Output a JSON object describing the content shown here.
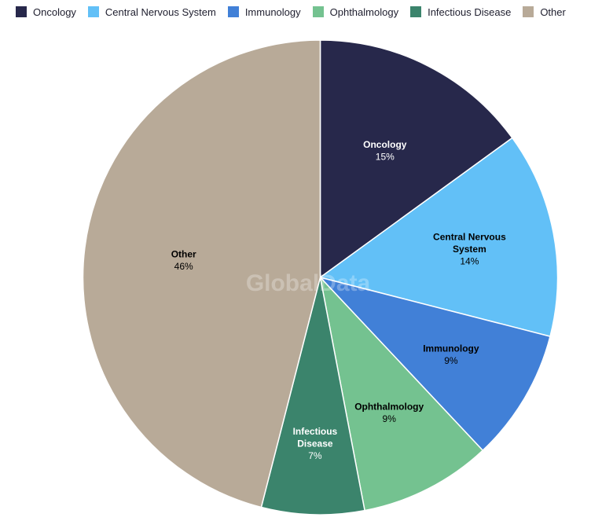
{
  "watermark": "GlobalData",
  "chart_data": {
    "type": "pie",
    "legend_position": "top",
    "slices": [
      {
        "name": "Oncology",
        "label_lines": [
          "Oncology"
        ],
        "value": 15,
        "value_label": "15%",
        "color": "#27284b",
        "label_color": "#ffffff"
      },
      {
        "name": "Central Nervous System",
        "label_lines": [
          "Central Nervous",
          "System"
        ],
        "value": 14,
        "value_label": "14%",
        "color": "#62c0f7",
        "label_color": "#000000"
      },
      {
        "name": "Immunology",
        "label_lines": [
          "Immunology"
        ],
        "value": 9,
        "value_label": "9%",
        "color": "#4180d7",
        "label_color": "#000000"
      },
      {
        "name": "Ophthalmology",
        "label_lines": [
          "Ophthalmology"
        ],
        "value": 9,
        "value_label": "9%",
        "color": "#74c290",
        "label_color": "#000000"
      },
      {
        "name": "Infectious Disease",
        "label_lines": [
          "Infectious",
          "Disease"
        ],
        "value": 7,
        "value_label": "7%",
        "color": "#3b846c",
        "label_color": "#ffffff"
      },
      {
        "name": "Other",
        "label_lines": [
          "Other"
        ],
        "value": 46,
        "value_label": "46%",
        "color": "#b8aa98",
        "label_color": "#000000"
      }
    ]
  }
}
